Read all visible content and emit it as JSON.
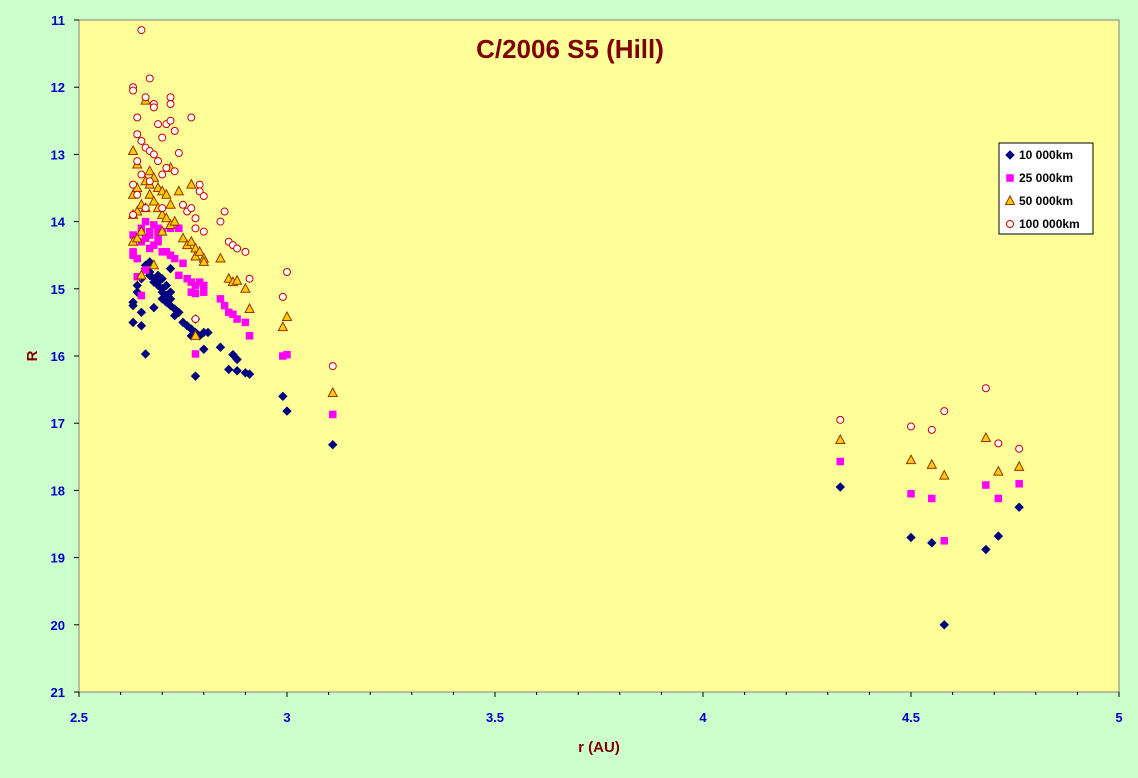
{
  "colors": {
    "page_bg": "#ccffcc",
    "plot_bg": "#ffff99",
    "title": "#800000",
    "tick_labels": "#0000cc",
    "series_10k": "#000080",
    "series_25k": "#ff00ff",
    "series_50k_fill": "#ffcc00",
    "series_50k_stroke": "#993300",
    "series_100k_fill": "#ffffff",
    "series_100k_stroke": "#cc0000"
  },
  "chart_data": {
    "type": "scatter",
    "title": "C/2006 S5 (Hill)",
    "xlabel": "r (AU)",
    "ylabel": "R",
    "xlim": [
      2.5,
      5
    ],
    "ylim": [
      11,
      21
    ],
    "y_inverted": true,
    "x_ticks": [
      2.5,
      3,
      3.5,
      4,
      4.5,
      5
    ],
    "x_tick_labels": [
      "2.5",
      "3",
      "3.5",
      "4",
      "4.5",
      "5"
    ],
    "y_ticks": [
      11,
      12,
      13,
      14,
      15,
      16,
      17,
      18,
      19,
      20,
      21
    ],
    "y_tick_labels": [
      "11",
      "12",
      "13",
      "14",
      "15",
      "16",
      "17",
      "18",
      "19",
      "20",
      "21"
    ],
    "grid": false,
    "legend_position": "top-right",
    "series": [
      {
        "name": "10 000km",
        "marker": "diamond",
        "points": [
          [
            2.63,
            15.2
          ],
          [
            2.63,
            15.25
          ],
          [
            2.63,
            15.5
          ],
          [
            2.64,
            15.05
          ],
          [
            2.64,
            14.95
          ],
          [
            2.65,
            14.85
          ],
          [
            2.65,
            15.35
          ],
          [
            2.65,
            15.55
          ],
          [
            2.66,
            14.7
          ],
          [
            2.66,
            14.65
          ],
          [
            2.66,
            15.97
          ],
          [
            2.67,
            14.6
          ],
          [
            2.67,
            14.75
          ],
          [
            2.67,
            14.8
          ],
          [
            2.68,
            14.85
          ],
          [
            2.68,
            14.9
          ],
          [
            2.68,
            15.28
          ],
          [
            2.69,
            14.8
          ],
          [
            2.69,
            14.9
          ],
          [
            2.69,
            14.95
          ],
          [
            2.7,
            14.85
          ],
          [
            2.7,
            15.0
          ],
          [
            2.7,
            15.05
          ],
          [
            2.7,
            15.15
          ],
          [
            2.71,
            14.95
          ],
          [
            2.71,
            15.1
          ],
          [
            2.71,
            15.2
          ],
          [
            2.72,
            15.05
          ],
          [
            2.72,
            15.15
          ],
          [
            2.72,
            15.25
          ],
          [
            2.72,
            14.7
          ],
          [
            2.73,
            15.3
          ],
          [
            2.73,
            15.4
          ],
          [
            2.74,
            15.35
          ],
          [
            2.75,
            15.5
          ],
          [
            2.76,
            15.55
          ],
          [
            2.77,
            15.6
          ],
          [
            2.77,
            15.7
          ],
          [
            2.78,
            15.45
          ],
          [
            2.78,
            15.65
          ],
          [
            2.78,
            16.3
          ],
          [
            2.79,
            15.7
          ],
          [
            2.8,
            15.65
          ],
          [
            2.8,
            15.9
          ],
          [
            2.81,
            15.65
          ],
          [
            2.84,
            15.87
          ],
          [
            2.86,
            16.2
          ],
          [
            2.87,
            15.98
          ],
          [
            2.88,
            16.05
          ],
          [
            2.88,
            16.22
          ],
          [
            2.9,
            16.25
          ],
          [
            2.91,
            16.27
          ],
          [
            2.99,
            16.6
          ],
          [
            3.0,
            16.82
          ],
          [
            3.11,
            17.32
          ],
          [
            4.33,
            17.95
          ],
          [
            4.5,
            18.7
          ],
          [
            4.55,
            18.78
          ],
          [
            4.58,
            20.0
          ],
          [
            4.68,
            18.88
          ],
          [
            4.71,
            18.68
          ],
          [
            4.76,
            18.25
          ]
        ]
      },
      {
        "name": "25 000km",
        "marker": "square",
        "points": [
          [
            2.63,
            14.5
          ],
          [
            2.63,
            14.45
          ],
          [
            2.63,
            14.2
          ],
          [
            2.64,
            14.82
          ],
          [
            2.64,
            14.55
          ],
          [
            2.65,
            14.3
          ],
          [
            2.65,
            14.1
          ],
          [
            2.65,
            15.1
          ],
          [
            2.66,
            14.0
          ],
          [
            2.66,
            14.25
          ],
          [
            2.66,
            14.72
          ],
          [
            2.67,
            14.4
          ],
          [
            2.67,
            14.15
          ],
          [
            2.67,
            14.2
          ],
          [
            2.68,
            14.05
          ],
          [
            2.68,
            14.35
          ],
          [
            2.69,
            14.1
          ],
          [
            2.69,
            14.2
          ],
          [
            2.69,
            14.3
          ],
          [
            2.7,
            14.15
          ],
          [
            2.7,
            14.45
          ],
          [
            2.71,
            14.45
          ],
          [
            2.72,
            14.5
          ],
          [
            2.72,
            14.1
          ],
          [
            2.73,
            14.55
          ],
          [
            2.74,
            14.8
          ],
          [
            2.74,
            14.1
          ],
          [
            2.75,
            14.62
          ],
          [
            2.76,
            14.85
          ],
          [
            2.77,
            14.9
          ],
          [
            2.77,
            15.05
          ],
          [
            2.78,
            14.95
          ],
          [
            2.78,
            15.07
          ],
          [
            2.78,
            15.97
          ],
          [
            2.79,
            14.9
          ],
          [
            2.8,
            14.95
          ],
          [
            2.8,
            15.05
          ],
          [
            2.84,
            15.15
          ],
          [
            2.85,
            15.25
          ],
          [
            2.86,
            15.35
          ],
          [
            2.87,
            15.38
          ],
          [
            2.88,
            15.45
          ],
          [
            2.9,
            15.5
          ],
          [
            2.91,
            15.7
          ],
          [
            2.99,
            16.0
          ],
          [
            3.0,
            15.98
          ],
          [
            3.11,
            16.87
          ],
          [
            4.33,
            17.57
          ],
          [
            4.5,
            18.05
          ],
          [
            4.55,
            18.12
          ],
          [
            4.58,
            18.75
          ],
          [
            4.68,
            17.92
          ],
          [
            4.71,
            18.12
          ],
          [
            4.76,
            17.9
          ]
        ]
      },
      {
        "name": "50 000km",
        "marker": "triangle",
        "points": [
          [
            2.63,
            13.9
          ],
          [
            2.63,
            14.3
          ],
          [
            2.63,
            13.6
          ],
          [
            2.63,
            12.95
          ],
          [
            2.64,
            14.25
          ],
          [
            2.64,
            13.85
          ],
          [
            2.64,
            13.5
          ],
          [
            2.64,
            13.15
          ],
          [
            2.65,
            14.15
          ],
          [
            2.65,
            13.75
          ],
          [
            2.65,
            14.8
          ],
          [
            2.66,
            12.2
          ],
          [
            2.66,
            13.4
          ],
          [
            2.66,
            13.8
          ],
          [
            2.67,
            13.45
          ],
          [
            2.67,
            13.6
          ],
          [
            2.67,
            13.25
          ],
          [
            2.68,
            13.35
          ],
          [
            2.68,
            13.7
          ],
          [
            2.68,
            14.65
          ],
          [
            2.69,
            13.5
          ],
          [
            2.69,
            13.8
          ],
          [
            2.7,
            13.55
          ],
          [
            2.7,
            13.9
          ],
          [
            2.7,
            14.15
          ],
          [
            2.71,
            13.6
          ],
          [
            2.71,
            13.95
          ],
          [
            2.72,
            13.75
          ],
          [
            2.72,
            14.05
          ],
          [
            2.72,
            13.2
          ],
          [
            2.73,
            14.0
          ],
          [
            2.74,
            13.55
          ],
          [
            2.75,
            14.25
          ],
          [
            2.76,
            14.35
          ],
          [
            2.77,
            14.3
          ],
          [
            2.77,
            13.45
          ],
          [
            2.78,
            14.4
          ],
          [
            2.78,
            14.52
          ],
          [
            2.78,
            15.7
          ],
          [
            2.79,
            14.45
          ],
          [
            2.8,
            14.55
          ],
          [
            2.8,
            14.6
          ],
          [
            2.84,
            14.55
          ],
          [
            2.86,
            14.85
          ],
          [
            2.87,
            14.9
          ],
          [
            2.88,
            14.88
          ],
          [
            2.9,
            15.0
          ],
          [
            2.91,
            15.3
          ],
          [
            2.99,
            15.57
          ],
          [
            3.0,
            15.42
          ],
          [
            3.11,
            16.55
          ],
          [
            4.33,
            17.25
          ],
          [
            4.5,
            17.55
          ],
          [
            4.55,
            17.62
          ],
          [
            4.58,
            17.78
          ],
          [
            4.68,
            17.22
          ],
          [
            4.71,
            17.72
          ],
          [
            4.76,
            17.65
          ]
        ]
      },
      {
        "name": "100 000km",
        "marker": "circle",
        "points": [
          [
            2.63,
            12.0
          ],
          [
            2.63,
            12.05
          ],
          [
            2.63,
            13.45
          ],
          [
            2.63,
            13.9
          ],
          [
            2.64,
            12.7
          ],
          [
            2.64,
            12.45
          ],
          [
            2.64,
            13.1
          ],
          [
            2.64,
            13.6
          ],
          [
            2.65,
            12.8
          ],
          [
            2.65,
            13.3
          ],
          [
            2.65,
            11.15
          ],
          [
            2.66,
            12.15
          ],
          [
            2.66,
            12.9
          ],
          [
            2.66,
            13.8
          ],
          [
            2.67,
            11.87
          ],
          [
            2.67,
            12.95
          ],
          [
            2.67,
            13.4
          ],
          [
            2.68,
            12.25
          ],
          [
            2.68,
            12.3
          ],
          [
            2.68,
            13.0
          ],
          [
            2.69,
            12.55
          ],
          [
            2.69,
            13.1
          ],
          [
            2.7,
            12.75
          ],
          [
            2.7,
            13.3
          ],
          [
            2.7,
            13.8
          ],
          [
            2.71,
            12.55
          ],
          [
            2.71,
            13.2
          ],
          [
            2.72,
            12.15
          ],
          [
            2.72,
            12.25
          ],
          [
            2.72,
            12.5
          ],
          [
            2.73,
            12.65
          ],
          [
            2.73,
            13.25
          ],
          [
            2.74,
            12.98
          ],
          [
            2.75,
            13.75
          ],
          [
            2.76,
            13.85
          ],
          [
            2.77,
            13.8
          ],
          [
            2.77,
            12.45
          ],
          [
            2.78,
            13.95
          ],
          [
            2.78,
            14.1
          ],
          [
            2.78,
            15.45
          ],
          [
            2.79,
            13.45
          ],
          [
            2.79,
            13.55
          ],
          [
            2.8,
            14.15
          ],
          [
            2.8,
            13.62
          ],
          [
            2.84,
            14.0
          ],
          [
            2.85,
            13.85
          ],
          [
            2.86,
            14.3
          ],
          [
            2.87,
            14.35
          ],
          [
            2.88,
            14.4
          ],
          [
            2.9,
            14.45
          ],
          [
            2.91,
            14.85
          ],
          [
            2.99,
            15.12
          ],
          [
            3.0,
            14.75
          ],
          [
            3.11,
            16.15
          ],
          [
            4.33,
            16.95
          ],
          [
            4.5,
            17.05
          ],
          [
            4.55,
            17.1
          ],
          [
            4.58,
            16.82
          ],
          [
            4.68,
            16.48
          ],
          [
            4.71,
            17.3
          ],
          [
            4.76,
            17.38
          ]
        ]
      }
    ]
  }
}
